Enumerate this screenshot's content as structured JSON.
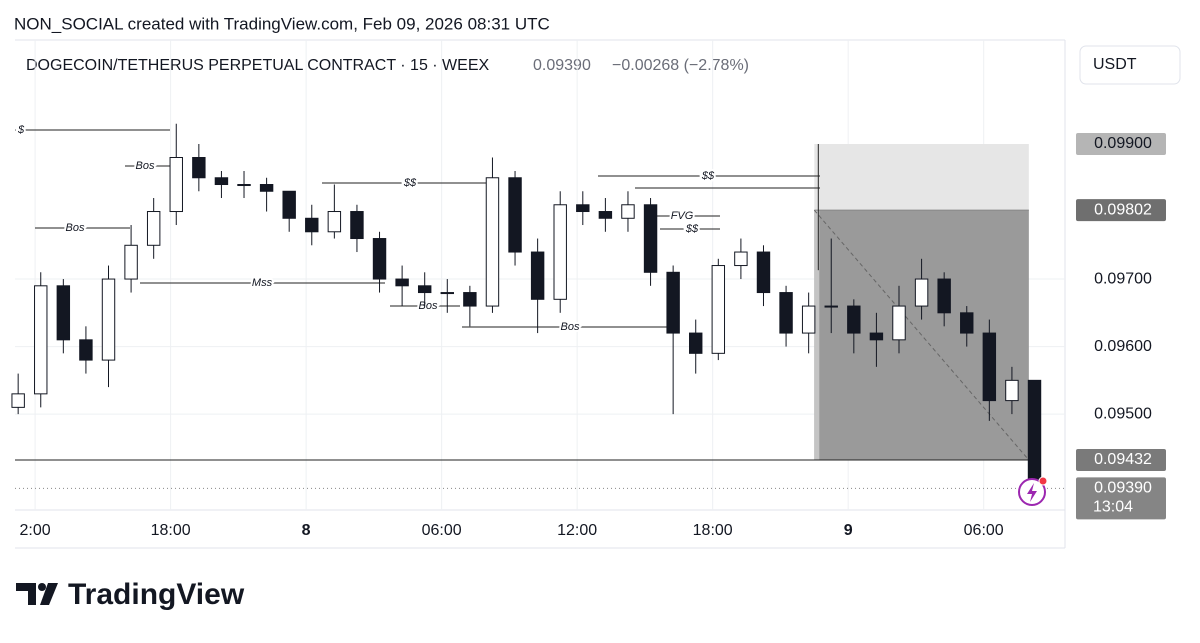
{
  "header": {
    "credit": "NON_SOCIAL created with TradingView.com, Feb 09, 2026 08:31 UTC",
    "symbol": "DOGECOIN/TETHERUS PERPETUAL CONTRACT · 15 · WEEX",
    "price": "0.09390",
    "change": "−0.00268 (−2.78%)",
    "currency": "USDT"
  },
  "logo": "TradingView",
  "chart_data": {
    "type": "candlestick",
    "x": [
      -0.75,
      0.25,
      1.25,
      2.25,
      3.25,
      4.25,
      5.25,
      6.25,
      7.25,
      8.25,
      9.25,
      10.25,
      11.25,
      12.25,
      13.25,
      14.25,
      15.25,
      16.25,
      17.25,
      18.25,
      19.25,
      20.25,
      21.25,
      22.25,
      23.25,
      24.25,
      25.25,
      26.25,
      27.25,
      28.25,
      29.25,
      30.25,
      31.25,
      32.25,
      33.25,
      34.25,
      35.25,
      36.25,
      37.25,
      38.25,
      39.25,
      40.25,
      41.25,
      42.25,
      43.25,
      44.25
    ],
    "open": [
      0.0951,
      0.0953,
      0.0969,
      0.0961,
      0.0958,
      0.097,
      0.0975,
      0.098,
      0.0988,
      0.0985,
      0.0984,
      0.0984,
      0.0983,
      0.0979,
      0.0977,
      0.098,
      0.0976,
      0.097,
      0.0969,
      0.0968,
      0.0968,
      0.0966,
      0.0985,
      0.0974,
      0.0967,
      0.0981,
      0.098,
      0.0979,
      0.0981,
      0.0971,
      0.0962,
      0.0959,
      0.0972,
      0.0974,
      0.0968,
      0.0962,
      0.0966,
      0.0966,
      0.0962,
      0.0961,
      0.0966,
      0.097,
      0.0965,
      0.0962,
      0.0952,
      0.0955
    ],
    "high": [
      0.0956,
      0.0971,
      0.097,
      0.0963,
      0.0972,
      0.0978,
      0.0982,
      0.0993,
      0.099,
      0.0986,
      0.0986,
      0.0985,
      0.0983,
      0.0981,
      0.0984,
      0.0981,
      0.0977,
      0.0972,
      0.0971,
      0.097,
      0.0969,
      0.0988,
      0.0986,
      0.0976,
      0.0983,
      0.0983,
      0.0982,
      0.0983,
      0.0982,
      0.0972,
      0.0964,
      0.0973,
      0.0976,
      0.0975,
      0.0969,
      0.0968,
      0.0976,
      0.0967,
      0.0965,
      0.0969,
      0.0973,
      0.0971,
      0.0966,
      0.0964,
      0.0957,
      0.0955
    ],
    "low": [
      0.095,
      0.0951,
      0.0959,
      0.0956,
      0.0954,
      0.0968,
      0.0973,
      0.0978,
      0.0983,
      0.0982,
      0.0982,
      0.098,
      0.0977,
      0.0975,
      0.0976,
      0.0974,
      0.0968,
      0.0966,
      0.0966,
      0.0965,
      0.0963,
      0.0965,
      0.0972,
      0.0962,
      0.0965,
      0.0978,
      0.0977,
      0.0977,
      0.0969,
      0.095,
      0.0956,
      0.0958,
      0.097,
      0.0966,
      0.096,
      0.0959,
      0.0962,
      0.0959,
      0.0957,
      0.0959,
      0.0964,
      0.0963,
      0.096,
      0.0949,
      0.095,
      0.0938
    ],
    "close": [
      0.0953,
      0.0969,
      0.0961,
      0.0958,
      0.097,
      0.0975,
      0.098,
      0.0988,
      0.0985,
      0.0984,
      0.0984,
      0.0983,
      0.0979,
      0.0977,
      0.098,
      0.0976,
      0.097,
      0.0969,
      0.0968,
      0.0968,
      0.0966,
      0.0985,
      0.0974,
      0.0967,
      0.0981,
      0.098,
      0.0979,
      0.0981,
      0.0971,
      0.0962,
      0.0959,
      0.0972,
      0.0974,
      0.0968,
      0.0962,
      0.0966,
      0.0966,
      0.0962,
      0.0961,
      0.0966,
      0.097,
      0.0965,
      0.0962,
      0.0952,
      0.0955,
      0.0939
    ],
    "xlim": [
      -0.89,
      45.6
    ],
    "xticks": [
      {
        "value": 0,
        "label": "2:00"
      },
      {
        "value": 6,
        "label": "18:00"
      },
      {
        "value": 12,
        "label": "8"
      },
      {
        "value": 18,
        "label": "06:00"
      },
      {
        "value": 24,
        "label": "12:00"
      },
      {
        "value": 30,
        "label": "18:00"
      },
      {
        "value": 36,
        "label": "9"
      },
      {
        "value": 42,
        "label": "06:00"
      }
    ],
    "ylim": [
      0.09358,
      0.10054
    ],
    "yticks": [
      {
        "value": 0.095,
        "label": "0.09500"
      },
      {
        "value": 0.096,
        "label": "0.09600"
      },
      {
        "value": 0.097,
        "label": "0.09700"
      }
    ],
    "grid": true,
    "position": {
      "stop": {
        "value": 0.099,
        "label": "0.09900"
      },
      "entry": {
        "value": 0.09802,
        "label": "0.09802"
      },
      "target": {
        "value": 0.09432,
        "label": "0.09432"
      },
      "x_start": 34.5,
      "x_end": 44
    },
    "last_price": {
      "value": 0.0939,
      "label": "0.09390"
    },
    "countdown": "13:04",
    "annotations": [
      "$",
      "Bos",
      "Bos",
      "Mss",
      "$$",
      "Bos",
      "Bos",
      "$$",
      "FVG",
      "$$"
    ]
  }
}
